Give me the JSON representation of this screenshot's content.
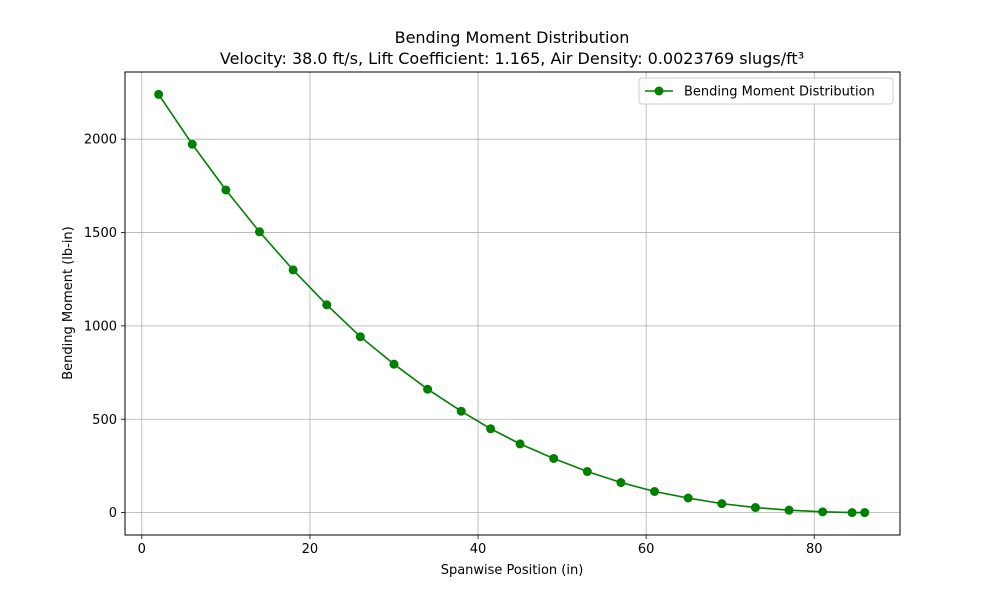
{
  "chart_data": {
    "type": "line",
    "title": "Bending Moment Distribution",
    "subtitle": "Velocity: 38.0 ft/s, Lift Coefficient: 1.165, Air Density: 0.0023769 slugs/ft³",
    "xlabel": "Spanwise Position (in)",
    "ylabel": "Bending Moment (lb-in)",
    "xlim": [
      -2,
      90.2
    ],
    "ylim": [
      -120,
      2360
    ],
    "xticks": [
      0,
      20,
      40,
      60,
      80
    ],
    "yticks": [
      0,
      500,
      1000,
      1500,
      2000
    ],
    "grid": true,
    "legend_position": "top-right",
    "series": [
      {
        "name": "Bending Moment Distribution",
        "color": "#008000",
        "marker": "circle",
        "x": [
          2,
          6,
          10,
          14,
          18,
          22,
          26,
          30,
          34,
          38,
          41.5,
          45,
          49,
          53,
          57,
          61,
          65,
          69,
          73,
          77,
          81,
          84.5,
          86
        ],
        "y": [
          2240,
          1973,
          1728,
          1504,
          1300,
          1113,
          942,
          795,
          661,
          543,
          449,
          368,
          290,
          220,
          161,
          113,
          78,
          48,
          27,
          13,
          4,
          0,
          0
        ]
      }
    ]
  }
}
